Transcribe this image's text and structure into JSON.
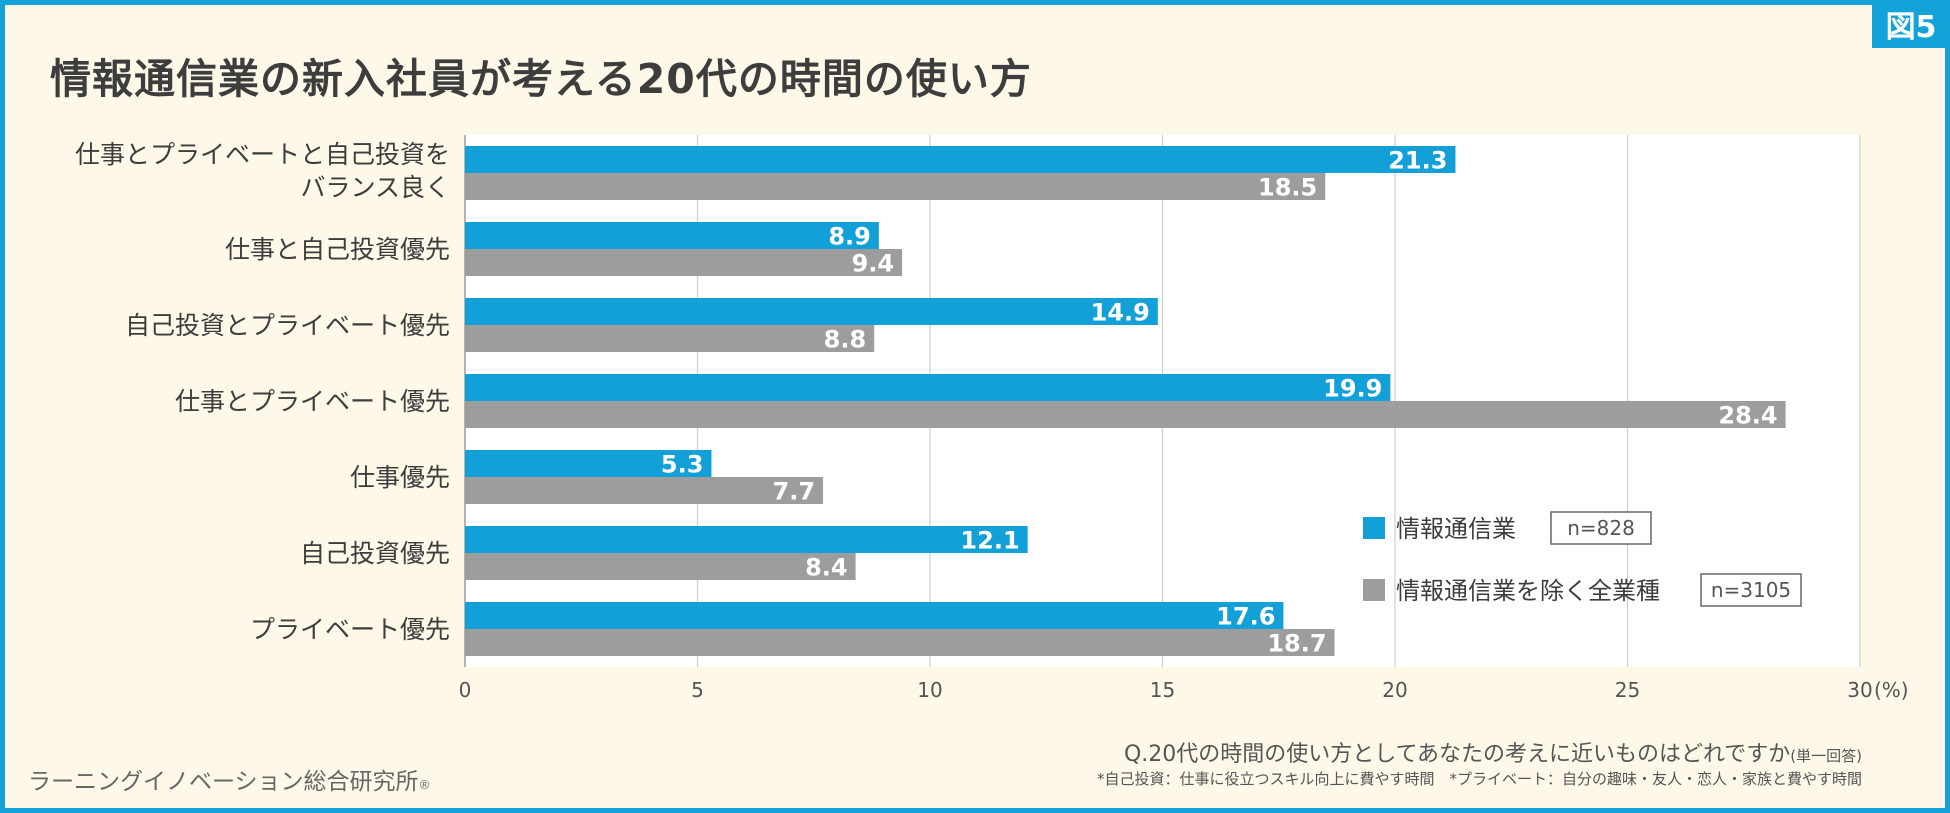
{
  "badge": "図5",
  "title": "情報通信業の新入社員が考える20代の時間の使い方",
  "chart_data": {
    "type": "bar",
    "orientation": "horizontal",
    "categories": [
      [
        "仕事とプライベートと自己投資を",
        "バランス良く"
      ],
      [
        "仕事と自己投資優先"
      ],
      [
        "自己投資とプライベート優先"
      ],
      [
        "仕事とプライベート優先"
      ],
      [
        "仕事優先"
      ],
      [
        "自己投資優先"
      ],
      [
        "プライベート優先"
      ]
    ],
    "series": [
      {
        "name": "情報通信業",
        "n": "n=828",
        "color": "#13a0d8",
        "values": [
          21.3,
          8.9,
          14.9,
          19.9,
          5.3,
          12.1,
          17.6
        ]
      },
      {
        "name": "情報通信業を除く全業種",
        "n": "n=3105",
        "color": "#9d9d9d",
        "values": [
          18.5,
          9.4,
          8.8,
          28.4,
          7.7,
          8.4,
          18.7
        ]
      }
    ],
    "xlim": [
      0,
      30
    ],
    "xticks": [
      "0",
      "5",
      "10",
      "15",
      "20",
      "25",
      "30"
    ],
    "xunit": "(%)",
    "grid": true,
    "legend_position": "bottom-right"
  },
  "question_main": "Q.20代の時間の使い方としてあなたの考えに近いものはどれですか",
  "question_suffix": "(単一回答)",
  "note": "*自己投資：仕事に役立つスキル向上に費やす時間　*プライベート：自分の趣味・友人・恋人・家族と費やす時間",
  "credit": "ラーニングイノベーション総合研究所",
  "credit_mark": "®"
}
